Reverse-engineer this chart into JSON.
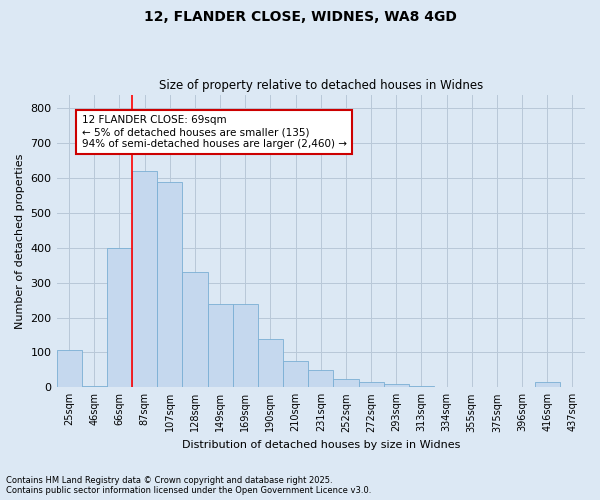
{
  "title1": "12, FLANDER CLOSE, WIDNES, WA8 4GD",
  "title2": "Size of property relative to detached houses in Widnes",
  "xlabel": "Distribution of detached houses by size in Widnes",
  "ylabel": "Number of detached properties",
  "categories": [
    "25sqm",
    "46sqm",
    "66sqm",
    "87sqm",
    "107sqm",
    "128sqm",
    "149sqm",
    "169sqm",
    "190sqm",
    "210sqm",
    "231sqm",
    "252sqm",
    "272sqm",
    "293sqm",
    "313sqm",
    "334sqm",
    "355sqm",
    "375sqm",
    "396sqm",
    "416sqm",
    "437sqm"
  ],
  "values": [
    107,
    3,
    400,
    620,
    590,
    330,
    240,
    240,
    140,
    75,
    50,
    25,
    15,
    10,
    5,
    0,
    0,
    0,
    0,
    15,
    0
  ],
  "bar_color": "#c5d8ee",
  "bar_edge_color": "#7aafd4",
  "grid_color": "#b8c8d8",
  "background_color": "#dce8f4",
  "red_line_index": 2,
  "annotation_text": "12 FLANDER CLOSE: 69sqm\n← 5% of detached houses are smaller (135)\n94% of semi-detached houses are larger (2,460) →",
  "annotation_box_color": "#ffffff",
  "annotation_box_edge": "#cc0000",
  "ylim": [
    0,
    840
  ],
  "yticks": [
    0,
    100,
    200,
    300,
    400,
    500,
    600,
    700,
    800
  ],
  "footnote1": "Contains HM Land Registry data © Crown copyright and database right 2025.",
  "footnote2": "Contains public sector information licensed under the Open Government Licence v3.0."
}
